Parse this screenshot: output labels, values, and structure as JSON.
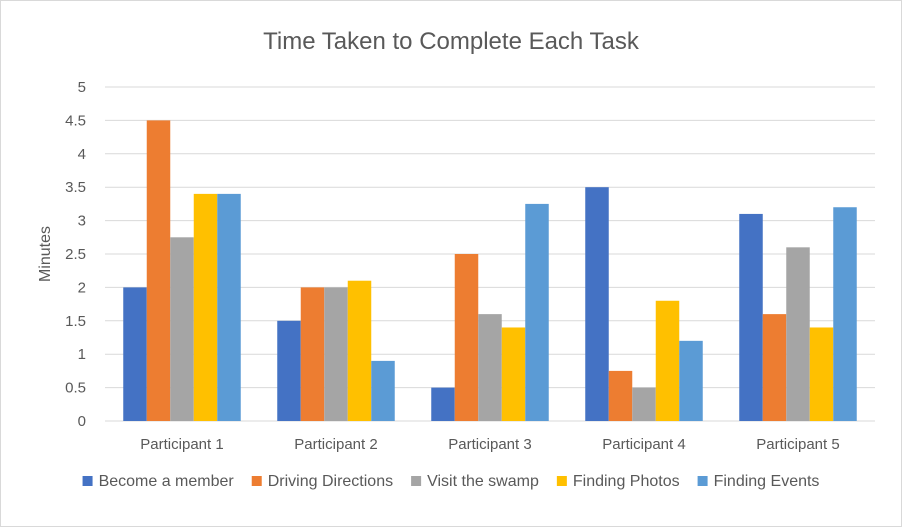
{
  "chart_data": {
    "type": "bar",
    "title": "Time Taken to Complete Each Task",
    "xlabel": "",
    "ylabel": "Minutes",
    "ylim": [
      0,
      5
    ],
    "yticks": [
      "0",
      "0.5",
      "1",
      "1.5",
      "2",
      "2.5",
      "3",
      "3.5",
      "4",
      "4.5",
      "5"
    ],
    "grid": true,
    "legend_position": "bottom",
    "categories": [
      "Participant 1",
      "Participant 2",
      "Participant 3",
      "Participant 4",
      "Participant 5"
    ],
    "series": [
      {
        "name": "Become a member",
        "color": "#4472C4",
        "values": [
          2,
          1.5,
          0.5,
          3.5,
          3.1
        ]
      },
      {
        "name": "Driving Directions",
        "color": "#ED7D31",
        "values": [
          4.5,
          2,
          2.5,
          0.75,
          1.6
        ]
      },
      {
        "name": "Visit the swamp",
        "color": "#A5A5A5",
        "values": [
          2.75,
          2,
          1.6,
          0.5,
          2.6
        ]
      },
      {
        "name": "Finding Photos",
        "color": "#FFC000",
        "values": [
          3.4,
          2.1,
          1.4,
          1.8,
          1.4
        ]
      },
      {
        "name": "Finding Events",
        "color": "#5B9BD5",
        "values": [
          3.4,
          0.9,
          3.25,
          1.2,
          3.2
        ]
      }
    ]
  }
}
